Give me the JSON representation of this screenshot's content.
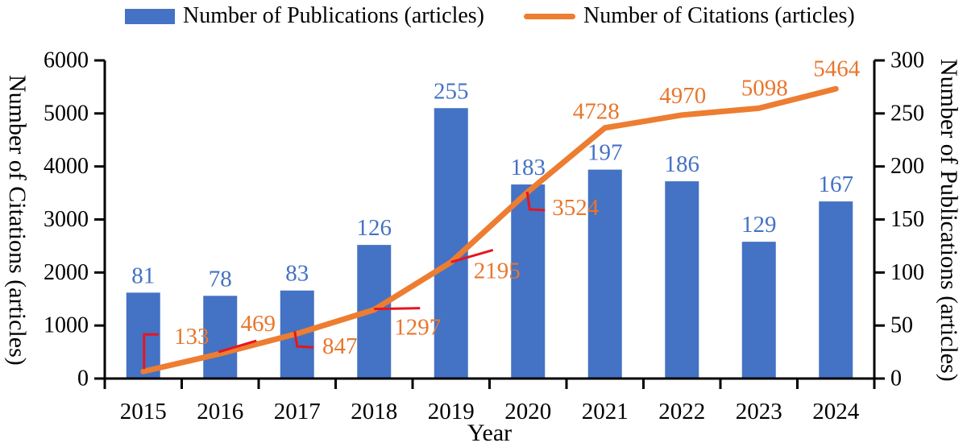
{
  "chart_data": {
    "type": "bar-line-combo",
    "categories": [
      "2015",
      "2016",
      "2017",
      "2018",
      "2019",
      "2020",
      "2021",
      "2022",
      "2023",
      "2024"
    ],
    "series": [
      {
        "name": "Number of Publications (articles)",
        "type": "bar",
        "axis": "right",
        "color": "#4472C4",
        "values": [
          81,
          78,
          83,
          126,
          255,
          183,
          197,
          186,
          129,
          167
        ]
      },
      {
        "name": "Number of Citations (articles)",
        "type": "line",
        "axis": "left",
        "color": "#ED7D31",
        "values": [
          133,
          469,
          847,
          1297,
          2195,
          3524,
          4728,
          4970,
          5098,
          5464
        ]
      }
    ],
    "left_axis": {
      "title": "Number of Citations (articles)",
      "min": 0,
      "max": 6000,
      "step": 1000,
      "ticks": [
        "0",
        "1000",
        "2000",
        "3000",
        "4000",
        "5000",
        "6000"
      ]
    },
    "right_axis": {
      "title": "Number of Publications (articles)",
      "min": 0,
      "max": 300,
      "step": 50,
      "ticks": [
        "0",
        "50",
        "100",
        "150",
        "200",
        "250",
        "300"
      ]
    },
    "x_axis": {
      "title": "Year"
    },
    "grid": false,
    "legend_position": "top",
    "citation_callouts": [
      {
        "year": "2015",
        "label": "133",
        "label_offset": [
          60,
          -43
        ],
        "leader": [
          [
            1,
            -3
          ],
          [
            1,
            -46
          ],
          [
            19,
            -46
          ]
        ]
      },
      {
        "year": "2016",
        "label": "469",
        "label_offset": [
          47,
          -37
        ],
        "leader": [
          [
            -2,
            -2
          ],
          [
            45,
            -16
          ]
        ]
      },
      {
        "year": "2017",
        "label": "847",
        "label_offset": [
          53,
          16
        ],
        "leader": [
          [
            -3,
            -3
          ],
          [
            0,
            16
          ],
          [
            20,
            17
          ]
        ]
      },
      {
        "year": "2018",
        "label": "1297",
        "label_offset": [
          54,
          22
        ],
        "leader": [
          [
            0,
            -1
          ],
          [
            57,
            -2
          ]
        ]
      },
      {
        "year": "2019",
        "label": "2195",
        "label_offset": [
          57,
          11
        ],
        "leader": [
          [
            0,
            0
          ],
          [
            52,
            -15
          ]
        ]
      },
      {
        "year": "2020",
        "label": "3524",
        "label_offset": [
          59,
          20
        ],
        "leader": [
          [
            -1,
            0
          ],
          [
            2,
            22
          ],
          [
            21,
            23
          ]
        ]
      },
      {
        "year": "2021",
        "label": "4728",
        "label_offset": [
          -11,
          -20
        ],
        "leader": []
      },
      {
        "year": "2022",
        "label": "4970",
        "label_offset": [
          1,
          -24
        ],
        "leader": []
      },
      {
        "year": "2023",
        "label": "5098",
        "label_offset": [
          7,
          -25
        ],
        "leader": []
      },
      {
        "year": "2024",
        "label": "5464",
        "label_offset": [
          1,
          -25
        ],
        "leader": []
      }
    ],
    "colors": {
      "bar": "#4472C4",
      "bar_label": "#4472C4",
      "line": "#ED7D31",
      "line_label": "#E8762C",
      "leader": "#E8151D",
      "axis": "#000000"
    }
  }
}
